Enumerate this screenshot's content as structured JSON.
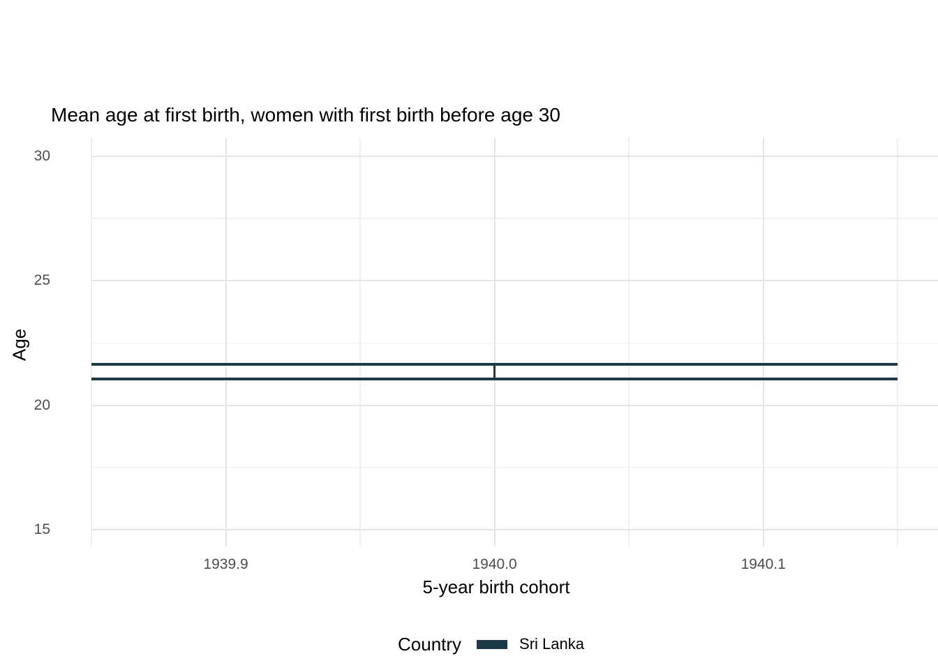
{
  "chart_data": {
    "type": "errorbar",
    "title": "Mean age at first birth, women with first birth before age 30",
    "xlabel": "5-year birth cohort",
    "ylabel": "Age",
    "xlim": [
      1939.85,
      1940.165
    ],
    "ylim": [
      14.32,
      30.73
    ],
    "grid": "on",
    "x_ticks": {
      "major": [
        1939.9,
        1940.0,
        1940.1
      ],
      "major_labels": [
        "1939.9",
        "1940.0",
        "1940.1"
      ],
      "minor": [
        1939.85,
        1939.95,
        1940.05,
        1940.15
      ]
    },
    "y_ticks": {
      "major": [
        15,
        20,
        25,
        30
      ],
      "major_labels": [
        "15",
        "20",
        "25",
        "30"
      ],
      "minor": [
        17.5,
        22.5,
        27.5
      ]
    },
    "series": [
      {
        "name": "Sri Lanka",
        "points": [
          {
            "x": 1940,
            "ymin": 21.05,
            "ymax": 21.65,
            "xmin": 1939.85,
            "xmax": 1940.15
          }
        ]
      }
    ],
    "legend": {
      "title": "Country",
      "position": "bottom",
      "entries": [
        {
          "label": "Sri Lanka",
          "color": "#1d3a47"
        }
      ]
    },
    "colors": {
      "series_color": "#1d3a47",
      "grid_major": "#e5e5e5",
      "grid_minor": "#efefef",
      "tick_label": "#4d4d4d",
      "text": "#000000",
      "background": "#ffffff"
    }
  }
}
